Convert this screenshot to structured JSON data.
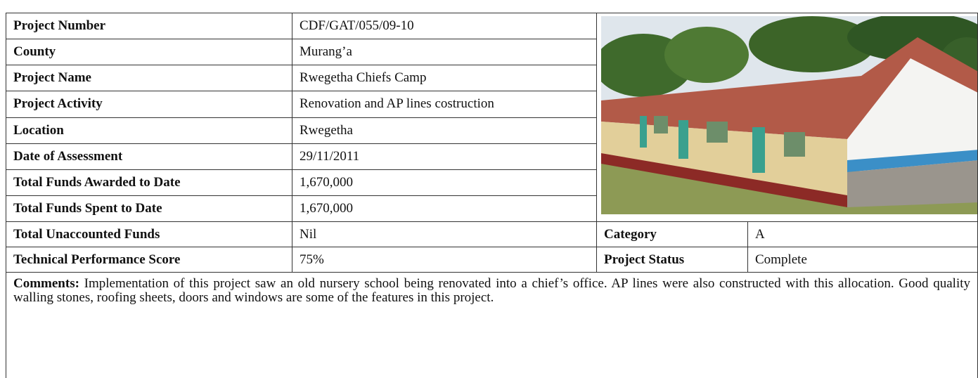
{
  "table": {
    "rows": [
      [
        "Project Number",
        "CDF/GAT/055/09-10"
      ],
      [
        "County",
        "Murang’a"
      ],
      [
        "Project Name",
        "Rwegetha Chiefs Camp"
      ],
      [
        "Project Activity",
        "Renovation and AP lines costruction"
      ],
      [
        "Location",
        "Rwegetha"
      ],
      [
        "Date of Assessment",
        "29/11/2011"
      ],
      [
        "Total Funds Awarded to Date",
        "1,670,000"
      ],
      [
        "Total Funds Spent to Date",
        "1,670,000"
      ],
      [
        "Total Unaccounted Funds",
        "Nil"
      ],
      [
        "Technical Performance Score",
        "75%"
      ]
    ],
    "side": [
      [
        "Category",
        "A"
      ],
      [
        "Project Status",
        "Complete"
      ]
    ]
  },
  "comments": {
    "label": "Comments:",
    "text": "Implementation of this project saw an old nursery school being renovated into a chief’s office.  AP lines were also constructed with this allocation.  Good quality walling stones, roofing sheets, doors and windows are some of the features in this project."
  }
}
